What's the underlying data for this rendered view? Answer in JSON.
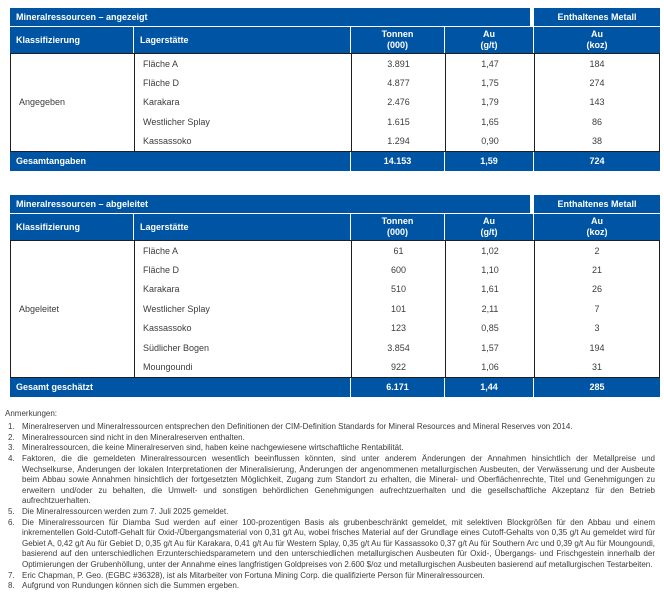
{
  "colors": {
    "accent_blue": "#0054a4",
    "body_text": "#3c3c3c",
    "border": "#1f1f1f"
  },
  "columns": {
    "classification": "Klassifizierung",
    "deposit": "Lagerstätte",
    "tonnes_l1": "Tonnen",
    "tonnes_l2": "(000)",
    "grade_l1": "Au",
    "grade_l2": "(g/t)",
    "metal_l1": "Au",
    "metal_l2": "(koz)"
  },
  "t1": {
    "title": "Mineralressourcen – angezeigt",
    "metal_header": "Enthaltenes Metall",
    "classification": "Angegeben",
    "rows": [
      {
        "deposit": "Fläche A",
        "tonnes": "3.891",
        "grade": "1,47",
        "metal": "184"
      },
      {
        "deposit": "Fläche D",
        "tonnes": "4.877",
        "grade": "1,75",
        "metal": "274"
      },
      {
        "deposit": "Karakara",
        "tonnes": "2.476",
        "grade": "1,79",
        "metal": "143"
      },
      {
        "deposit": "Westlicher Splay",
        "tonnes": "1.615",
        "grade": "1,65",
        "metal": "86"
      },
      {
        "deposit": "Kassassoko",
        "tonnes": "1.294",
        "grade": "0,90",
        "metal": "38"
      }
    ],
    "total": {
      "label": "Gesamtangaben",
      "tonnes": "14.153",
      "grade": "1,59",
      "metal": "724"
    }
  },
  "t2": {
    "title": "Mineralressourcen – abgeleitet",
    "metal_header": "Enthaltenes Metall",
    "classification": "Abgeleitet",
    "rows": [
      {
        "deposit": "Fläche A",
        "tonnes": "61",
        "grade": "1,02",
        "metal": "2"
      },
      {
        "deposit": "Fläche D",
        "tonnes": "600",
        "grade": "1,10",
        "metal": "21"
      },
      {
        "deposit": "Karakara",
        "tonnes": "510",
        "grade": "1,61",
        "metal": "26"
      },
      {
        "deposit": "Westlicher Splay",
        "tonnes": "101",
        "grade": "2,11",
        "metal": "7"
      },
      {
        "deposit": "Kassassoko",
        "tonnes": "123",
        "grade": "0,85",
        "metal": "3"
      },
      {
        "deposit": "Südlicher Bogen",
        "tonnes": "3.854",
        "grade": "1,57",
        "metal": "194"
      },
      {
        "deposit": "Moungoundi",
        "tonnes": "922",
        "grade": "1,06",
        "metal": "31"
      }
    ],
    "total": {
      "label": "Gesamt geschätzt",
      "tonnes": "6.171",
      "grade": "1,44",
      "metal": "285"
    }
  },
  "notes": {
    "heading": "Anmerkungen:",
    "items": [
      {
        "num": "1.",
        "text": "Mineralreserven und Mineralressourcen entsprechen den Definitionen der CIM-Definition Standards for Mineral Resources and Mineral Reserves von 2014."
      },
      {
        "num": "2.",
        "text": "Mineralressourcen sind nicht in den Mineralreserven enthalten."
      },
      {
        "num": "3.",
        "text": "Mineralressourcen, die keine Mineralreserven sind, haben keine nachgewiesene wirtschaftliche Rentabilität."
      },
      {
        "num": "4.",
        "text": "Faktoren, die die gemeldeten Mineralressourcen wesentlich beeinflussen könnten, sind unter anderem Änderungen der Annahmen hinsichtlich der Metallpreise und Wechselkurse, Änderungen der lokalen Interpretationen der Mineralisierung, Änderungen der angenommenen metallurgischen Ausbeuten, der Verwässerung und der Ausbeute beim Abbau sowie Annahmen hinsichtlich der fortgesetzten Möglichkeit, Zugang zum Standort zu erhalten, die Mineral- und Oberflächenrechte, Titel und Genehmigungen zu erweitern und/oder zu behalten, die Umwelt- und sonstigen behördlichen Genehmigungen aufrechtzuerhalten und die gesellschaftliche Akzeptanz für den Betrieb aufrechtzuerhalten."
      },
      {
        "num": "5.",
        "text": "Die Mineralressourcen werden zum 7. Juli 2025 gemeldet."
      },
      {
        "num": "6.",
        "text": "Die Mineralressourcen für Diamba Sud werden auf einer 100-prozentigen Basis als grubenbeschränkt gemeldet, mit selektiven Blockgrößen für den Abbau und einem inkrementellen Gold-Cutoff-Gehalt für Oxid-/Übergangsmaterial von 0,31 g/t Au, wobei frisches Material auf der Grundlage eines Cutoff-Gehalts von 0,35 g/t Au gemeldet wird für Gebiet A, 0,42 g/t Au für Gebiet D, 0,35 g/t Au für Karakara, 0,41 g/t Au für Western Splay, 0,35 g/t Au für Kassassoko 0,37 g/t Au für Southern Arc und 0,39 g/t Au für Moungoundi, basierend auf den unterschiedlichen Erzunterschiedsparametern und den unterschiedlichen metallurgischen Ausbeuten für Oxid-, Übergangs- und Frischgestein innerhalb der Optimierungen der Grubenhöllung, unter der Annahme eines langfristigen Goldpreises von 2.600 $/oz und metallurgischen Ausbeuten basierend auf metallurgischen Testarbeiten."
      },
      {
        "num": "7.",
        "text": "Eric Chapman, P. Geo. (EGBC #36328), ist als Mitarbeiter von Fortuna Mining Corp. die qualifizierte Person für Mineralressourcen."
      },
      {
        "num": "8.",
        "text": "Aufgrund von Rundungen können sich die Summen ergeben."
      }
    ]
  }
}
